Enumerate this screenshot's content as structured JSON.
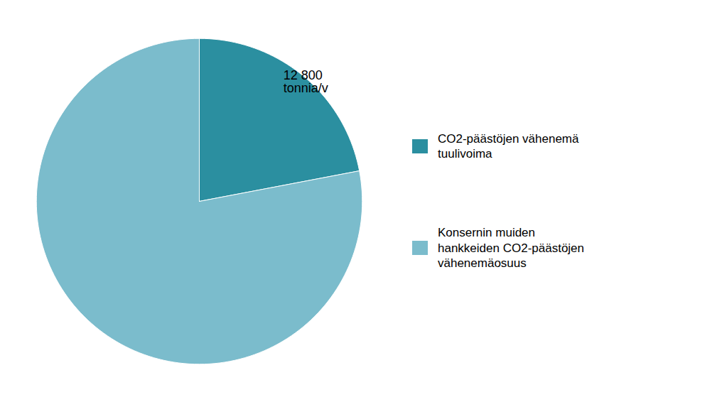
{
  "chart_data": {
    "type": "pie",
    "categories": [
      "CO2-päästöjen vähenemä\ntuulivoima",
      "Konsernin muiden\nhankkeiden CO2-päästöjen\nvähenemäosuus"
    ],
    "values": [
      22,
      78
    ],
    "colors": [
      "#2b8fa0",
      "#7bbccc"
    ],
    "annotation": "12 800\ntonnia/v",
    "legend": "right"
  }
}
